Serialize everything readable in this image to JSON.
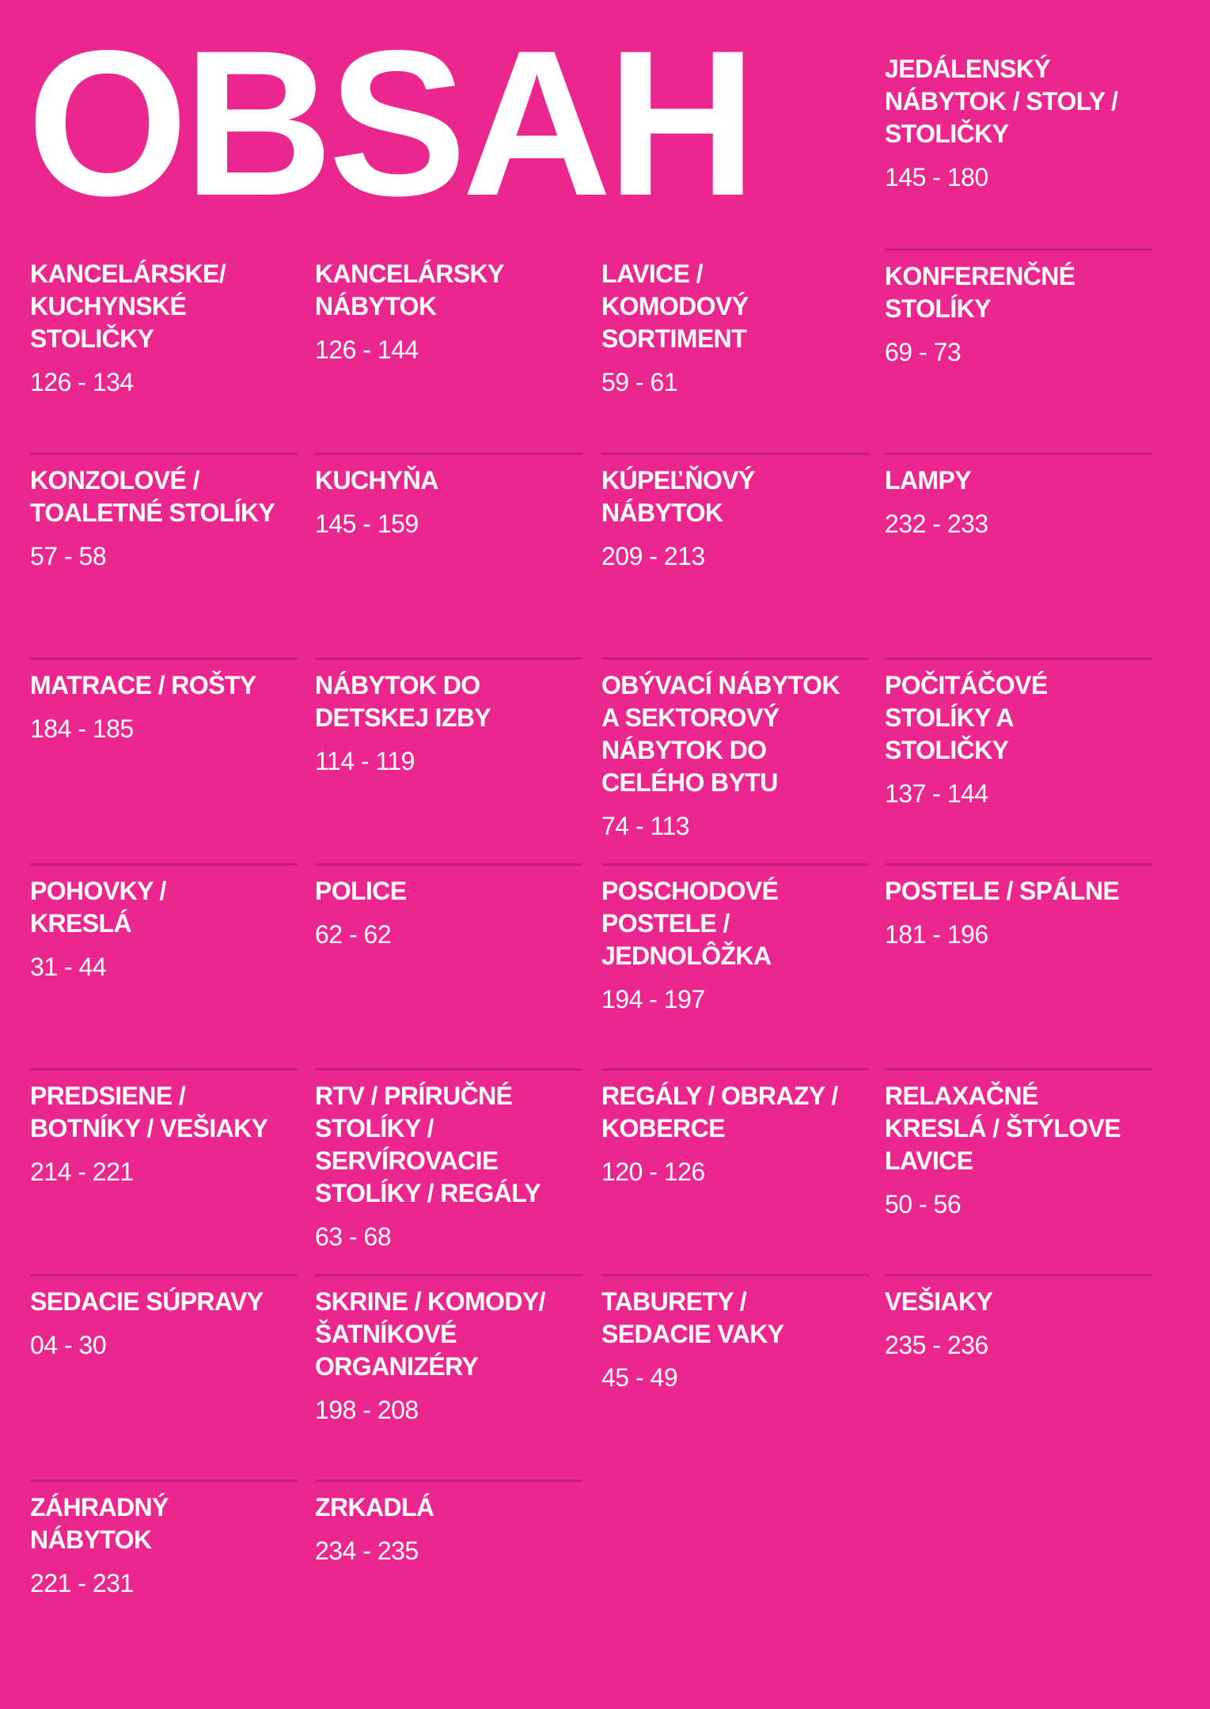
{
  "title": "OBSAH",
  "colors": {
    "background": "#EC268F",
    "divider": "#C41F7B",
    "text": "#FFFFFF"
  },
  "featured": {
    "heading": "JEDÁLENSKÝ\nNÁBYTOK / STOLY /\nSTOLIČKY",
    "pages": "145 - 180"
  },
  "items": [
    {
      "heading": "KANCELÁRSKE/\nKUCHYNSKÉ\nSTOLIČKY",
      "pages": "126 - 134"
    },
    {
      "heading": "KANCELÁRSKY\nNÁBYTOK",
      "pages": "126 - 144"
    },
    {
      "heading": "LAVICE /\nKOMODOVÝ\nSORTIMENT",
      "pages": "59 - 61"
    },
    {
      "heading": "KONFERENČNÉ\nSTOLÍKY",
      "pages": "69 - 73"
    },
    {
      "heading": "KONZOLOVÉ /\nTOALETNÉ STOLÍKY",
      "pages": "57 - 58"
    },
    {
      "heading": "KUCHYŇA",
      "pages": "145 - 159"
    },
    {
      "heading": "KÚPEĽŇOVÝ\nNÁBYTOK",
      "pages": "209 - 213"
    },
    {
      "heading": "LAMPY",
      "pages": "232 - 233"
    },
    {
      "heading": "MATRACE / ROŠTY",
      "pages": "184 - 185"
    },
    {
      "heading": "NÁBYTOK DO\nDETSKEJ IZBY",
      "pages": "114 - 119"
    },
    {
      "heading": "OBÝVACÍ NÁBYTOK\nA SEKTOROVÝ\nNÁBYTOK DO\nCELÉHO BYTU",
      "pages": "74 - 113"
    },
    {
      "heading": "POČITÁČOVÉ\nSTOLÍKY A\nSTOLIČKY",
      "pages": "137 - 144"
    },
    {
      "heading": "POHOVKY /\nKRESLÁ",
      "pages": "31 - 44"
    },
    {
      "heading": "POLICE",
      "pages": "62 - 62"
    },
    {
      "heading": "POSCHODOVÉ\nPOSTELE /\nJEDNOLÔŽKA",
      "pages": "194 - 197"
    },
    {
      "heading": "POSTELE / SPÁLNE",
      "pages": "181 - 196"
    },
    {
      "heading": "PREDSIENE /\nBOTNÍKY / VEŠIAKY",
      "pages": "214 - 221"
    },
    {
      "heading": "RTV / PRÍRUČNÉ\nSTOLÍKY /\nSERVÍROVACIE\nSTOLÍKY / REGÁLY",
      "pages": "63 - 68"
    },
    {
      "heading": "REGÁLY / OBRAZY /\nKOBERCE",
      "pages": "120 - 126"
    },
    {
      "heading": "RELAXAČNÉ\nKRESLÁ / ŠTÝLOVE\nLAVICE",
      "pages": "50 - 56"
    },
    {
      "heading": "SEDACIE SÚPRAVY",
      "pages": "04 - 30"
    },
    {
      "heading": "SKRINE / KOMODY/\nŠATNÍKOVÉ\nORGANIZÉRY",
      "pages": "198 - 208"
    },
    {
      "heading": "TABURETY /\nSEDACIE VAKY",
      "pages": "45 - 49"
    },
    {
      "heading": "VEŠIAKY",
      "pages": "235 - 236"
    },
    {
      "heading": "ZÁHRADNÝ\nNÁBYTOK",
      "pages": "221 - 231"
    },
    {
      "heading": "ZRKADLÁ",
      "pages": "234 - 235"
    }
  ]
}
